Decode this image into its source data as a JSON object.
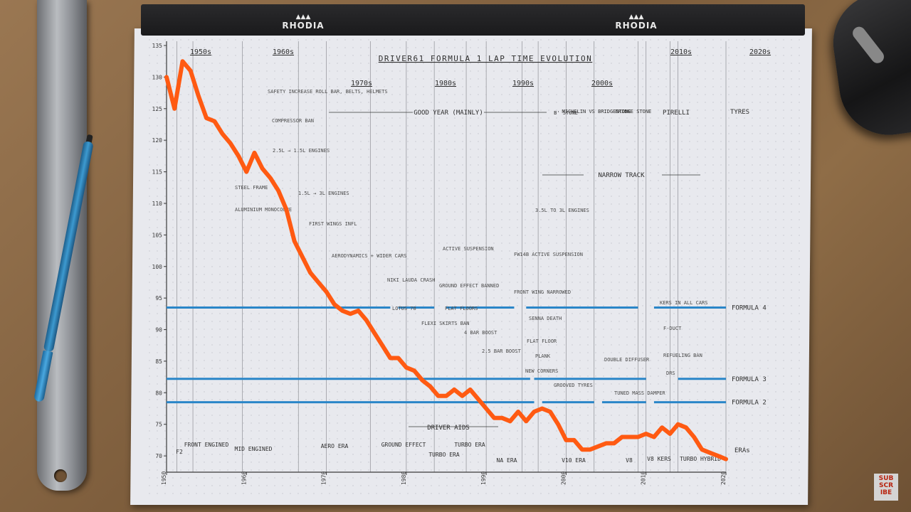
{
  "brand": {
    "logo": "RHODIA"
  },
  "subscribe": {
    "label": "SUB SCR IBE",
    "color": "#b8230f"
  },
  "colors": {
    "lap_line": "#ff5a12",
    "formula_lines": "#2a86c8",
    "pencil": "#3a3a3a"
  },
  "chart_data": {
    "type": "line",
    "title": "DRIVER61 FORMULA 1 LAP TIME EVOLUTION",
    "xlabel": "",
    "ylabel": "",
    "xlim": [
      1950,
      2020
    ],
    "ylim": [
      68,
      135
    ],
    "x_ticks": [
      1950,
      1960,
      1970,
      1980,
      1990,
      2000,
      2010,
      2020
    ],
    "y_ticks": [
      70,
      75,
      80,
      85,
      90,
      95,
      100,
      105,
      110,
      115,
      120,
      125,
      130,
      135
    ],
    "grid": true,
    "series": [
      {
        "x": [
          1950,
          1951,
          1952,
          1953,
          1954,
          1955,
          1956,
          1957,
          1958,
          1959,
          1960,
          1961,
          1962,
          1963,
          1964,
          1965,
          1966,
          1967,
          1968,
          1969,
          1970,
          1971,
          1972,
          1973,
          1974,
          1975,
          1976,
          1977,
          1978,
          1979,
          1980,
          1981,
          1982,
          1983,
          1984,
          1985,
          1986,
          1987,
          1988,
          1989,
          1990,
          1991,
          1992,
          1993,
          1994,
          1995,
          1996,
          1997,
          1998,
          1999,
          2000,
          2001,
          2002,
          2003,
          2004,
          2005,
          2006,
          2007,
          2008,
          2009,
          2010,
          2011,
          2012,
          2013,
          2014,
          2015,
          2016,
          2017,
          2018,
          2019,
          2020
        ],
        "y": [
          130,
          125,
          132.5,
          131,
          127,
          123.5,
          123,
          121,
          119.5,
          117.5,
          115,
          118,
          115.5,
          114,
          112,
          109,
          104,
          101.5,
          99,
          97.5,
          96,
          94,
          93,
          92.5,
          93,
          91.5,
          89.5,
          87.5,
          85.5,
          85.5,
          84,
          83.5,
          82,
          81,
          79.5,
          79.5,
          80.5,
          79.5,
          80.5,
          79,
          77.5,
          76,
          76,
          75.5,
          77,
          75.5,
          77,
          77.5,
          77,
          75,
          72.5,
          72.5,
          71,
          71,
          71.5,
          72,
          72,
          73,
          73,
          73,
          73.5,
          73,
          74.5,
          73.5,
          75,
          74.5,
          73,
          71,
          70.5,
          70,
          69.5
        ]
      }
    ],
    "reference_lines": [
      {
        "name": "FORMULA 4",
        "y": 93.5,
        "segments": [
          [
            1950,
            1978
          ],
          [
            1979,
            1983.5
          ],
          [
            1985,
            1993.5
          ],
          [
            1995,
            2009
          ],
          [
            2011,
            2020
          ]
        ]
      },
      {
        "name": "FORMULA 3",
        "y": 82.2,
        "segments": [
          [
            1950,
            1995.5
          ],
          [
            1996,
            2000
          ],
          [
            2000,
            2010
          ],
          [
            2014,
            2020
          ]
        ]
      },
      {
        "name": "FORMULA 2",
        "y": 78.5,
        "segments": [
          [
            1950,
            1996
          ],
          [
            1997,
            2003.5
          ],
          [
            2004.5,
            2010
          ],
          [
            2011,
            2020
          ]
        ]
      }
    ],
    "decades": [
      "1950s",
      "1960s",
      "1970s",
      "1980s",
      "1990s",
      "2000s",
      "2010s",
      "2020s"
    ],
    "era_row": {
      "label": "ERAs",
      "items": [
        "F2",
        "FRONT ENGINED",
        "MID ENGINED",
        "AERO ERA",
        "GROUND EFFECT",
        "TURBO ERA",
        "TURBO ERA",
        "NA ERA",
        "V10 ERA",
        "V8",
        "V8 KERS",
        "TURBO HYBRID"
      ]
    },
    "driver_aids": "DRIVER AIDS",
    "tyres": {
      "label": "TYRES",
      "items": [
        "GOOD YEAR (MAINLY)",
        "B' STONE",
        "MICHELIN VS BRIDGESTONE",
        "BRIDGE STONE",
        "PIRELLI"
      ]
    },
    "narrow_track": "NARROW TRACK",
    "annotations": [
      "SAFETY INCREASE ROLL BAR, BELTS, HELMETS",
      "COMPRESSOR BAN",
      "2.5L → 1.5L ENGINES",
      "STEEL FRAME",
      "ALUMINIUM MONOCOQUE",
      "1.5L → 3L ENGINES",
      "FIRST WINGS INFL",
      "AERODYNAMICS + WIDER CARS",
      "NIKI LAUDA CRASH",
      "LOTUS 78",
      "FLEXI SKIRTS BAN",
      "ACTIVE SUSPENSION",
      "GROUND EFFECT BANNED",
      "FLAT FLOORS",
      "4 BAR BOOST",
      "2.5 BAR BOOST",
      "3.5L TO 3L ENGINES",
      "FW14B ACTIVE SUSPENSION",
      "FRONT WING NARROWED",
      "SENNA DEATH",
      "FLAT FLOOR",
      "PLANK",
      "NEW CORNERS",
      "GROOVED TYRES",
      "DOUBLE DIFFUSER",
      "TUNED MASS DAMPER",
      "REFUELING BAN",
      "KERS IN ALL CARS",
      "F-DUCT",
      "DRS"
    ]
  }
}
